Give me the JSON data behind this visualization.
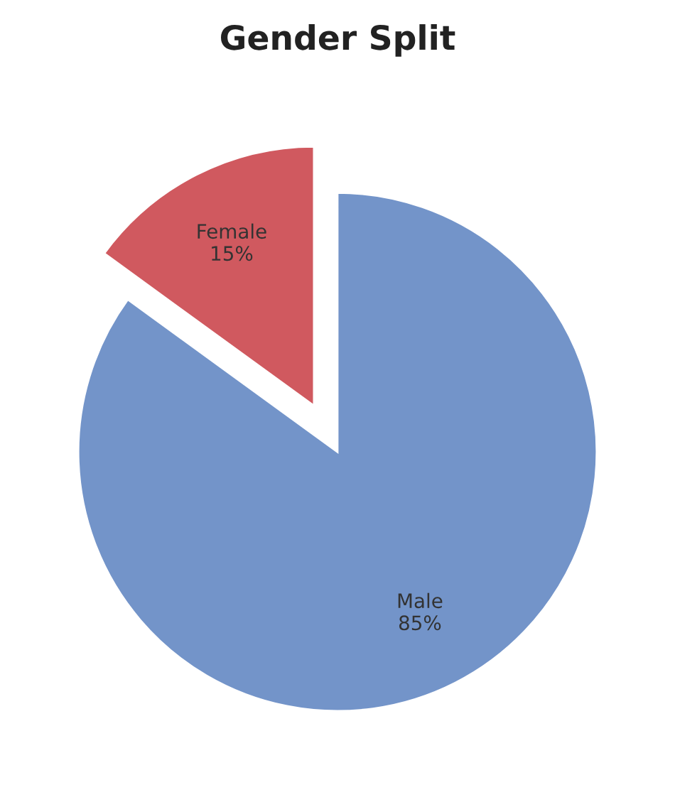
{
  "chart_data": {
    "type": "pie",
    "title": "Gender Split",
    "categories": [
      "Male",
      "Female"
    ],
    "values": [
      85,
      15
    ],
    "colors": [
      "#7394c9",
      "#d0595f"
    ],
    "value_labels": [
      "85%",
      "15%"
    ],
    "legend": false
  }
}
